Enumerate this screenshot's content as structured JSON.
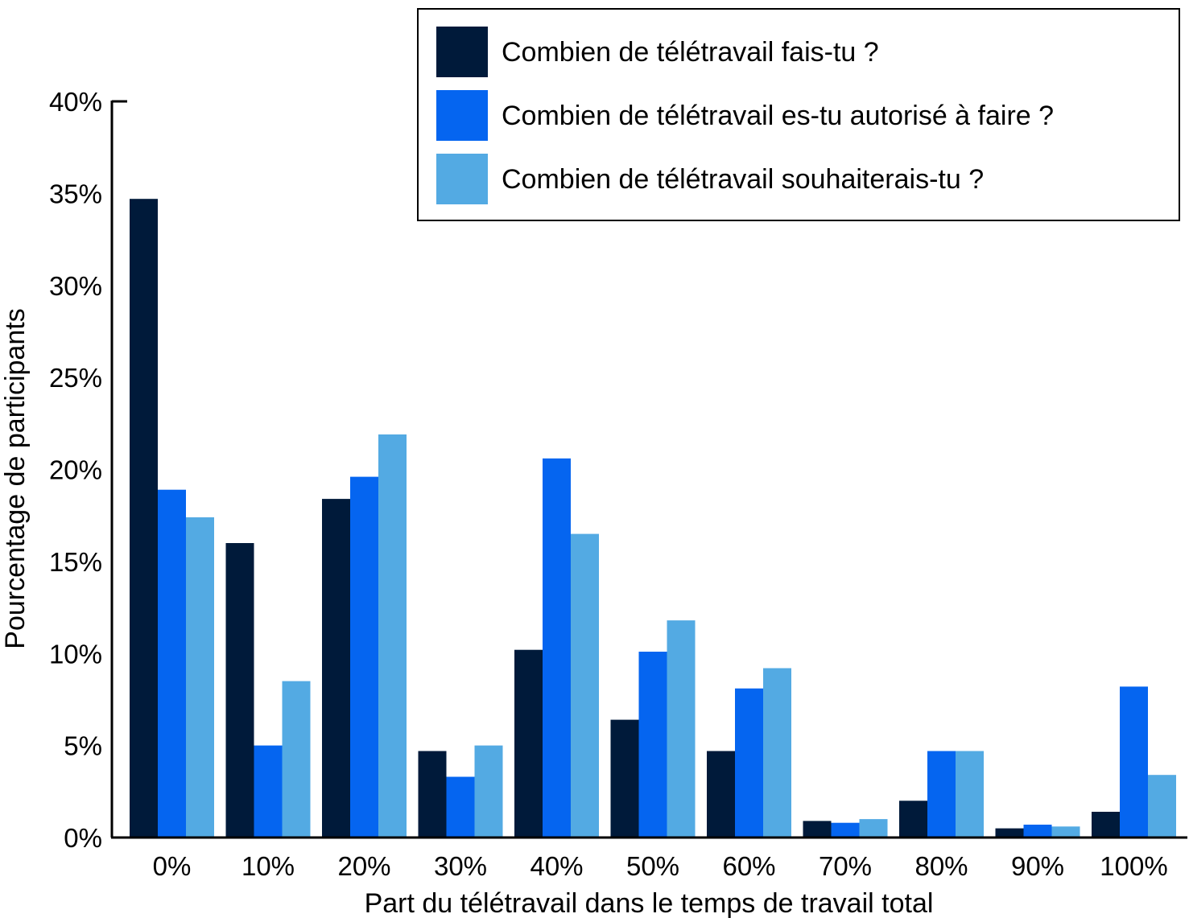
{
  "chart_data": {
    "type": "bar",
    "title": "",
    "xlabel": "Part du télétravail dans le temps de travail total",
    "ylabel": "Pourcentage de participants",
    "ylim": [
      0,
      40
    ],
    "yticks": [
      "0%",
      "5%",
      "10%",
      "15%",
      "20%",
      "25%",
      "30%",
      "35%",
      "40%"
    ],
    "categories": [
      "0%",
      "10%",
      "20%",
      "30%",
      "40%",
      "50%",
      "60%",
      "70%",
      "80%",
      "90%",
      "100%"
    ],
    "series": [
      {
        "name": "Combien de télétravail fais-tu ?",
        "color": "#001a3a",
        "values": [
          34.7,
          16.0,
          18.4,
          4.7,
          10.2,
          6.4,
          4.7,
          0.9,
          2.0,
          0.5,
          1.4
        ]
      },
      {
        "name": "Combien de télétravail es-tu autorisé à faire ?",
        "color": "#0565f0",
        "values": [
          18.9,
          5.0,
          19.6,
          3.3,
          20.6,
          10.1,
          8.1,
          0.8,
          4.7,
          0.7,
          8.2
        ]
      },
      {
        "name": "Combien de télétravail souhaiterais-tu ?",
        "color": "#53aae3",
        "values": [
          17.4,
          8.5,
          21.9,
          5.0,
          16.5,
          11.8,
          9.2,
          1.0,
          4.7,
          0.6,
          3.4
        ]
      }
    ],
    "legend_position": "top-right",
    "grid": false
  }
}
